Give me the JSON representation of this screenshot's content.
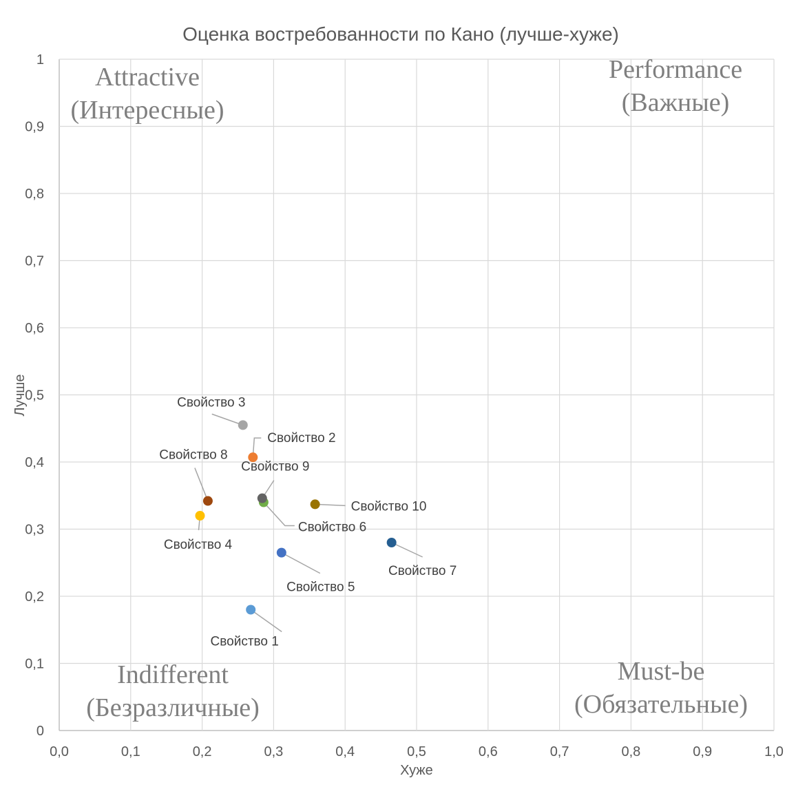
{
  "chart_data": {
    "type": "scatter",
    "title": "Оценка востребованности по Кано (лучше-хуже)",
    "xlabel": "Хуже",
    "ylabel": "Лучше",
    "xlim": [
      0,
      1
    ],
    "ylim": [
      0,
      1
    ],
    "x_ticks": [
      "0,0",
      "0,1",
      "0,2",
      "0,3",
      "0,4",
      "0,5",
      "0,6",
      "0,7",
      "0,8",
      "0,9",
      "1,0"
    ],
    "y_ticks": [
      "0",
      "0,1",
      "0,2",
      "0,3",
      "0,4",
      "0,5",
      "0,6",
      "0,7",
      "0,8",
      "0,9",
      "1"
    ],
    "grid": true,
    "quadrants": {
      "top_left": [
        "Attractive",
        "(Интересные)"
      ],
      "top_right": [
        "Performance",
        "(Важные)"
      ],
      "bottom_left": [
        "Indifferent",
        "(Безразличные)"
      ],
      "bottom_right": [
        "Must-be",
        "(Обязательные)"
      ]
    },
    "points": [
      {
        "label": "Свойство 1",
        "x": 0.268,
        "y": 0.18,
        "color": "#5b9bd5"
      },
      {
        "label": "Свойство 2",
        "x": 0.271,
        "y": 0.407,
        "color": "#ed7d31"
      },
      {
        "label": "Свойство 3",
        "x": 0.257,
        "y": 0.455,
        "color": "#a5a5a5"
      },
      {
        "label": "Свойство 4",
        "x": 0.197,
        "y": 0.32,
        "color": "#ffc000"
      },
      {
        "label": "Свойство 5",
        "x": 0.311,
        "y": 0.265,
        "color": "#4472c4"
      },
      {
        "label": "Свойство 6",
        "x": 0.286,
        "y": 0.34,
        "color": "#70ad47"
      },
      {
        "label": "Свойство 7",
        "x": 0.465,
        "y": 0.28,
        "color": "#255e91"
      },
      {
        "label": "Свойство 8",
        "x": 0.208,
        "y": 0.342,
        "color": "#9e480e"
      },
      {
        "label": "Свойство 9",
        "x": 0.284,
        "y": 0.346,
        "color": "#636363"
      },
      {
        "label": "Свойство 10",
        "x": 0.358,
        "y": 0.337,
        "color": "#997300"
      }
    ]
  }
}
